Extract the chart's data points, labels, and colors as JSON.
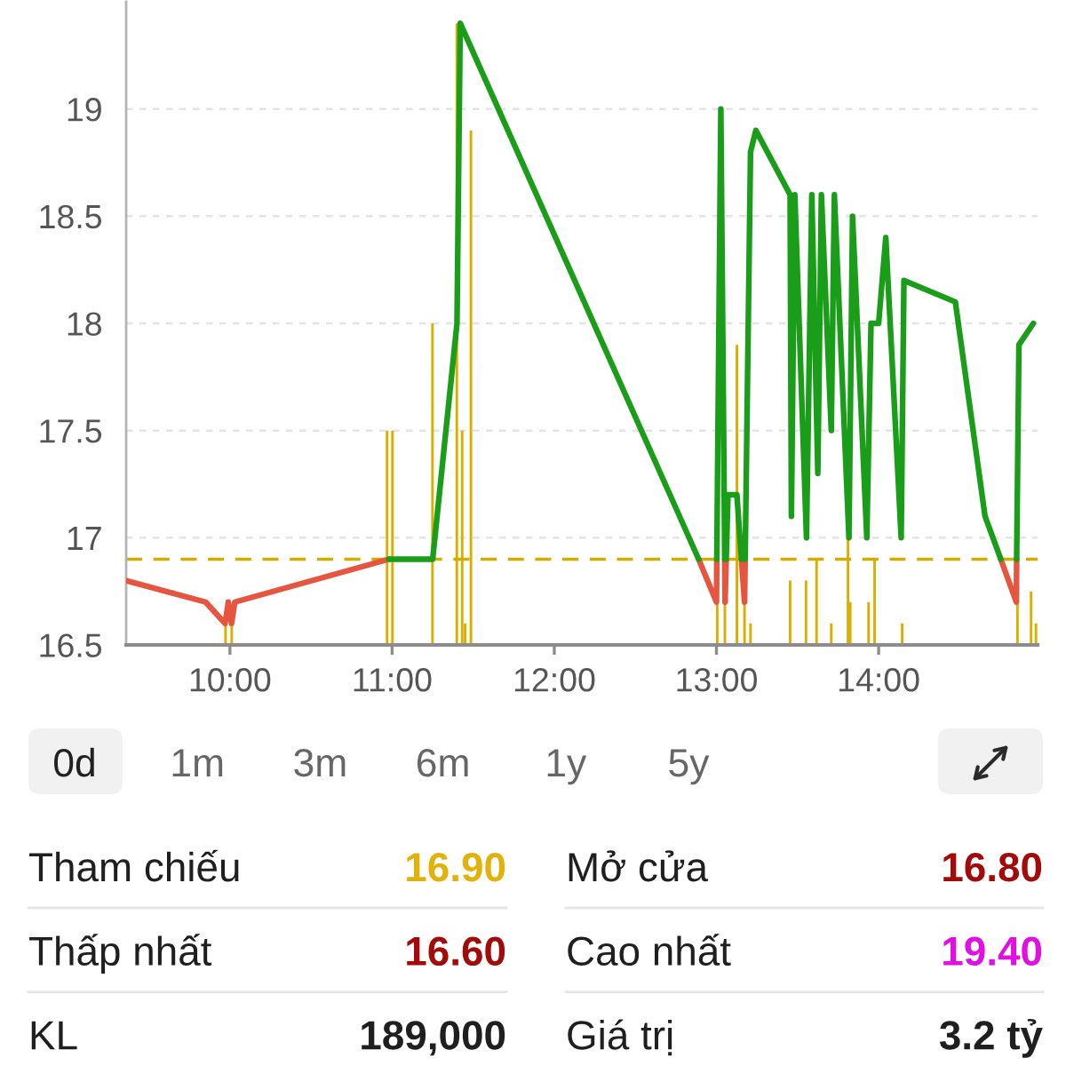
{
  "chart_data": [
    {
      "type": "line",
      "series": [
        {
          "color": "#e6553f",
          "x": [
            9.36,
            9.85,
            9.97,
            9.99,
            10.01,
            10.03,
            10.98,
            11.9,
            12.89,
            13.0,
            13.002,
            13.03,
            13.051,
            13.053,
            13.06,
            13.1,
            13.154,
            13.173,
            13.177,
            14.0,
            14.753,
            14.849,
            14.851
          ],
          "values": [
            16.8,
            16.7,
            16.6,
            16.7,
            16.6,
            16.7,
            16.9,
            null,
            16.9,
            16.7,
            16.9,
            null,
            16.9,
            16.7,
            16.9,
            null,
            16.9,
            16.7,
            16.9,
            null,
            16.9,
            16.7,
            16.9
          ]
        },
        {
          "color": "#1a9e1a",
          "x": [
            10.98,
            11.25,
            11.4,
            11.42,
            12.89,
            12.95,
            13.002,
            13.027,
            13.051,
            13.055,
            13.06,
            13.071,
            13.126,
            13.154,
            13.165,
            13.177,
            13.21,
            13.243,
            13.454,
            13.462,
            13.483,
            13.555,
            13.588,
            13.625,
            13.647,
            13.708,
            13.727,
            13.817,
            13.839,
            13.927,
            13.953,
            14.0,
            14.044,
            14.139,
            14.156,
            14.473,
            14.656,
            14.753,
            14.8,
            14.851,
            14.865,
            14.954
          ],
          "values": [
            16.9,
            16.9,
            18.0,
            19.4,
            16.9,
            null,
            16.9,
            19.0,
            16.9,
            null,
            16.9,
            17.2,
            17.2,
            16.9,
            null,
            16.9,
            18.8,
            18.9,
            18.6,
            17.1,
            18.6,
            17.0,
            18.6,
            17.3,
            18.6,
            17.5,
            18.6,
            17.0,
            18.5,
            17.0,
            18.0,
            18.0,
            18.4,
            17.0,
            18.2,
            18.1,
            17.1,
            16.9,
            null,
            16.9,
            17.9,
            18.0
          ]
        },
        {
          "type": "bar",
          "color": "#d9b000",
          "x": [
            9.973,
            10.011,
            10.969,
            11.002,
            11.249,
            11.399,
            11.432,
            11.45,
            11.486,
            13.005,
            13.052,
            13.126,
            13.173,
            13.21,
            13.454,
            13.552,
            13.617,
            13.708,
            13.811,
            13.825,
            13.938,
            13.975,
            14.145,
            14.856,
            14.94,
            14.97
          ],
          "values": [
            16.6,
            16.6,
            17.5,
            17.5,
            18.0,
            19.4,
            17.5,
            16.6,
            18.9,
            16.7,
            16.7,
            17.9,
            16.7,
            16.6,
            16.8,
            16.8,
            16.9,
            16.6,
            17.0,
            16.7,
            16.7,
            16.9,
            16.6,
            16.7,
            16.75,
            16.6
          ]
        }
      ],
      "xlim": [
        9.36,
        14.98
      ],
      "xticks": [
        {
          "value": 10,
          "label": "10:00"
        },
        {
          "value": 11,
          "label": "11:00"
        },
        {
          "value": 12,
          "label": "12:00"
        },
        {
          "value": 13,
          "label": "13:00"
        },
        {
          "value": 14,
          "label": "14:00"
        }
      ],
      "ylim": [
        16.5,
        19.5
      ],
      "yticks": [
        16.5,
        17,
        17.5,
        18,
        18.5,
        19
      ],
      "grid": "y",
      "ref_lines": [
        {
          "axis": "y",
          "value": 16.9,
          "color": "#d4ad00",
          "line_style": "dashed"
        }
      ],
      "annotations": [
        "0d",
        "1m",
        "3m",
        "6m",
        "1y",
        "5y"
      ]
    },
    {
      "type": "other",
      "annotations": [
        "Tham chiếu",
        "16.90",
        "Mở cửa",
        "16.80",
        "Thấp nhất",
        "16.60",
        "Cao nhất",
        "19.40",
        "KL",
        "189,000",
        "Giá trị",
        "3.2 tỷ"
      ]
    }
  ]
}
